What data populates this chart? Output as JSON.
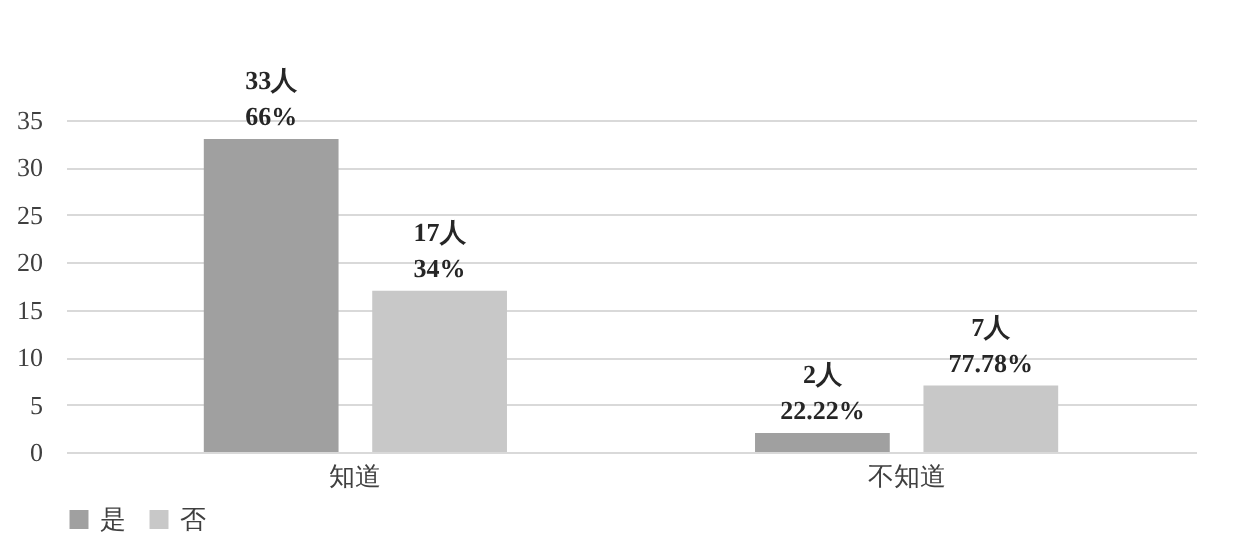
{
  "chart_data": {
    "type": "bar",
    "categories": [
      "知道",
      "不知道"
    ],
    "series": [
      {
        "name": "是",
        "color": "#a0a0a0",
        "values": [
          33,
          2
        ],
        "value_labels": [
          "33人\n66%",
          "2人\n22.22%"
        ]
      },
      {
        "name": "否",
        "color": "#c8c8c8",
        "values": [
          17,
          7
        ],
        "value_labels": [
          "17人\n34%",
          "7人\n77.78%"
        ]
      }
    ],
    "ylim": [
      0,
      35
    ],
    "yticks": [
      0,
      5,
      10,
      15,
      20,
      25,
      30,
      35
    ],
    "grid": "y",
    "legend": "bottom"
  }
}
